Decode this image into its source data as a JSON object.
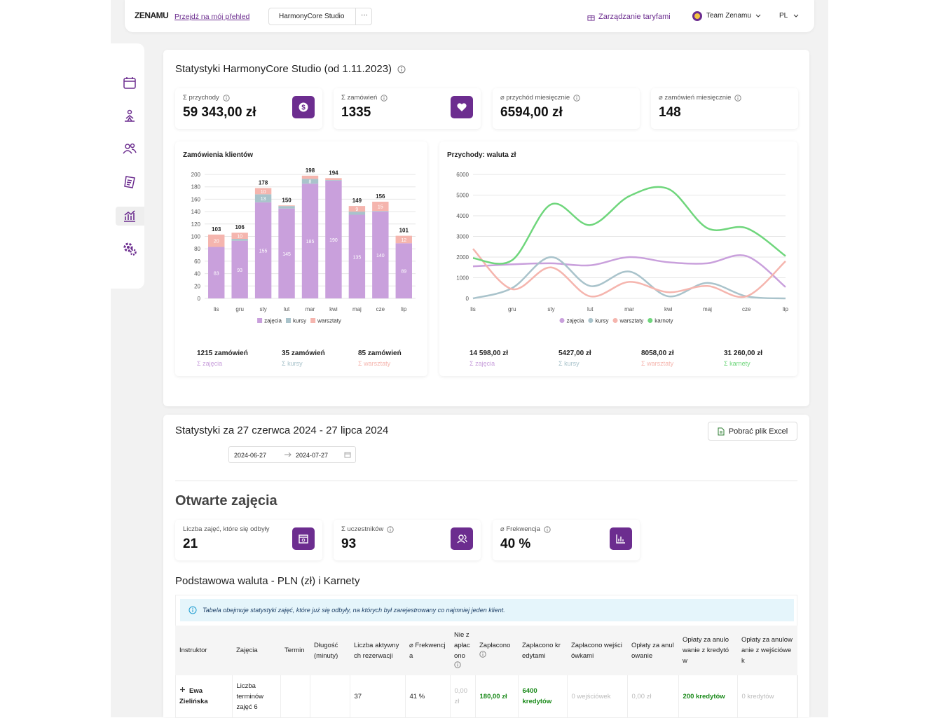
{
  "header": {
    "logo": "ZENAMU",
    "overview_link": "Przejdź na mój přehled",
    "studio": "HarmonyCore Studio",
    "more": "···",
    "tariffs": "Zarządzanie taryfami",
    "team": "Team Zenamu",
    "language": "PL"
  },
  "overview": {
    "title": "Statystyki HarmonyCore Studio (od 1.11.2023)",
    "kpis": [
      {
        "label": "Σ przychody",
        "value": "59 343,00 zł"
      },
      {
        "label": "Σ zamówień",
        "value": "1335"
      },
      {
        "label": "⌀ przychód miesięcznie",
        "value": "6594,00 zł"
      },
      {
        "label": "⌀ zamówień miesięcznie",
        "value": "148"
      }
    ]
  },
  "chart_data": [
    {
      "type": "bar",
      "stacked": true,
      "title": "Zamówienia klientów",
      "categories": [
        "lis",
        "gru",
        "sty",
        "lut",
        "mar",
        "kwi",
        "maj",
        "cze",
        "lip"
      ],
      "series": [
        {
          "name": "zajęcia",
          "color": "#c9a0dc",
          "values": [
            83,
            93,
            155,
            145,
            185,
            190,
            135,
            140,
            89
          ]
        },
        {
          "name": "kursy",
          "color": "#a9c3cb",
          "values": [
            0,
            3,
            13,
            4,
            8,
            1,
            5,
            1,
            0
          ]
        },
        {
          "name": "warsztaty",
          "color": "#f5b5ae",
          "values": [
            20,
            10,
            10,
            1,
            5,
            3,
            9,
            15,
            12
          ]
        }
      ],
      "totals": [
        103,
        106,
        178,
        150,
        198,
        194,
        149,
        156,
        101
      ],
      "ylim": [
        0,
        200
      ],
      "yticks": [
        0,
        20,
        40,
        60,
        80,
        100,
        120,
        140,
        160,
        180,
        200
      ],
      "grid": true,
      "legend": "bottom",
      "summary": [
        {
          "value": "1215 zamówień",
          "label": "Σ zajęcia"
        },
        {
          "value": "35 zamówień",
          "label": "Σ kursy"
        },
        {
          "value": "85 zamówień",
          "label": "Σ warsztaty"
        }
      ]
    },
    {
      "type": "line",
      "smooth": true,
      "title": "Przychody: waluta zł",
      "categories": [
        "lis",
        "gru",
        "sty",
        "lut",
        "mar",
        "kwi",
        "maj",
        "cze",
        "lip"
      ],
      "series": [
        {
          "name": "zajęcia",
          "color": "#c9a0dc",
          "values": [
            1550,
            1650,
            1700,
            1600,
            2000,
            1750,
            1700,
            2050,
            550
          ]
        },
        {
          "name": "kursy",
          "color": "#a9c3cb",
          "values": [
            0,
            500,
            2000,
            600,
            1300,
            100,
            750,
            100,
            0
          ]
        },
        {
          "name": "warsztaty",
          "color": "#f5b5ae",
          "values": [
            2400,
            450,
            1500,
            100,
            800,
            300,
            600,
            100,
            1800
          ]
        },
        {
          "name": "karnety",
          "color": "#6fd67c",
          "values": [
            1950,
            1850,
            4550,
            3550,
            4950,
            5300,
            3400,
            3400,
            2050
          ]
        }
      ],
      "ylim": [
        0,
        6000
      ],
      "yticks": [
        0,
        1000,
        2000,
        3000,
        4000,
        5000,
        6000
      ],
      "grid": true,
      "legend": "bottom",
      "summary": [
        {
          "value": "14 598,00 zł",
          "label": "Σ zajęcia"
        },
        {
          "value": "5427,00 zł",
          "label": "Σ kursy"
        },
        {
          "value": "8058,00 zł",
          "label": "Σ warsztaty"
        },
        {
          "value": "31 260,00 zł",
          "label": "Σ karnety"
        }
      ]
    }
  ],
  "period": {
    "title": "Statystyki za 27 czerwca 2024 - 27 lipca 2024",
    "excel_button": "Pobrać plik Excel",
    "date_from": "2024-06-27",
    "date_to": "2024-07-27",
    "section_title": "Otwarte zajęcia",
    "kpis": [
      {
        "label": "Liczba zajęć, które się odbyły",
        "value": "21"
      },
      {
        "label": "Σ uczestników",
        "value": "93"
      },
      {
        "label": "⌀ Frekwencja",
        "value": "40 %"
      }
    ],
    "currency_title": "Podstawowa waluta - PLN (zł) i Karnety",
    "info": "Tabela obejmuje statystyki zajęć, które już się odbyły, na których był zarejestrowany co najmniej jeden klient.",
    "table": {
      "columns": [
        "Instruktor",
        "Zajęcia",
        "Termin",
        "Długość (minuty)",
        "Liczba aktywnych rezerwacji",
        "⌀ Frekwencja",
        "Nie zapłacono",
        "Zapłacono",
        "Zapłacono kredytami",
        "Zapłacono wejściówkami",
        "Opłaty za anulowanie",
        "Opłaty za anulowanie z kredytów",
        "Opłaty za anulowanie z wejściówek"
      ],
      "rows": [
        [
          "Ewa Zielińska",
          "Liczba terminów zajęć 6",
          null,
          null,
          "37",
          "41 %",
          "0,00 zł",
          "180,00 zł",
          "6400 kredytów",
          "0 wejściówek",
          "0,00 zł",
          "200 kredytów",
          "0 kredytów"
        ]
      ]
    }
  }
}
